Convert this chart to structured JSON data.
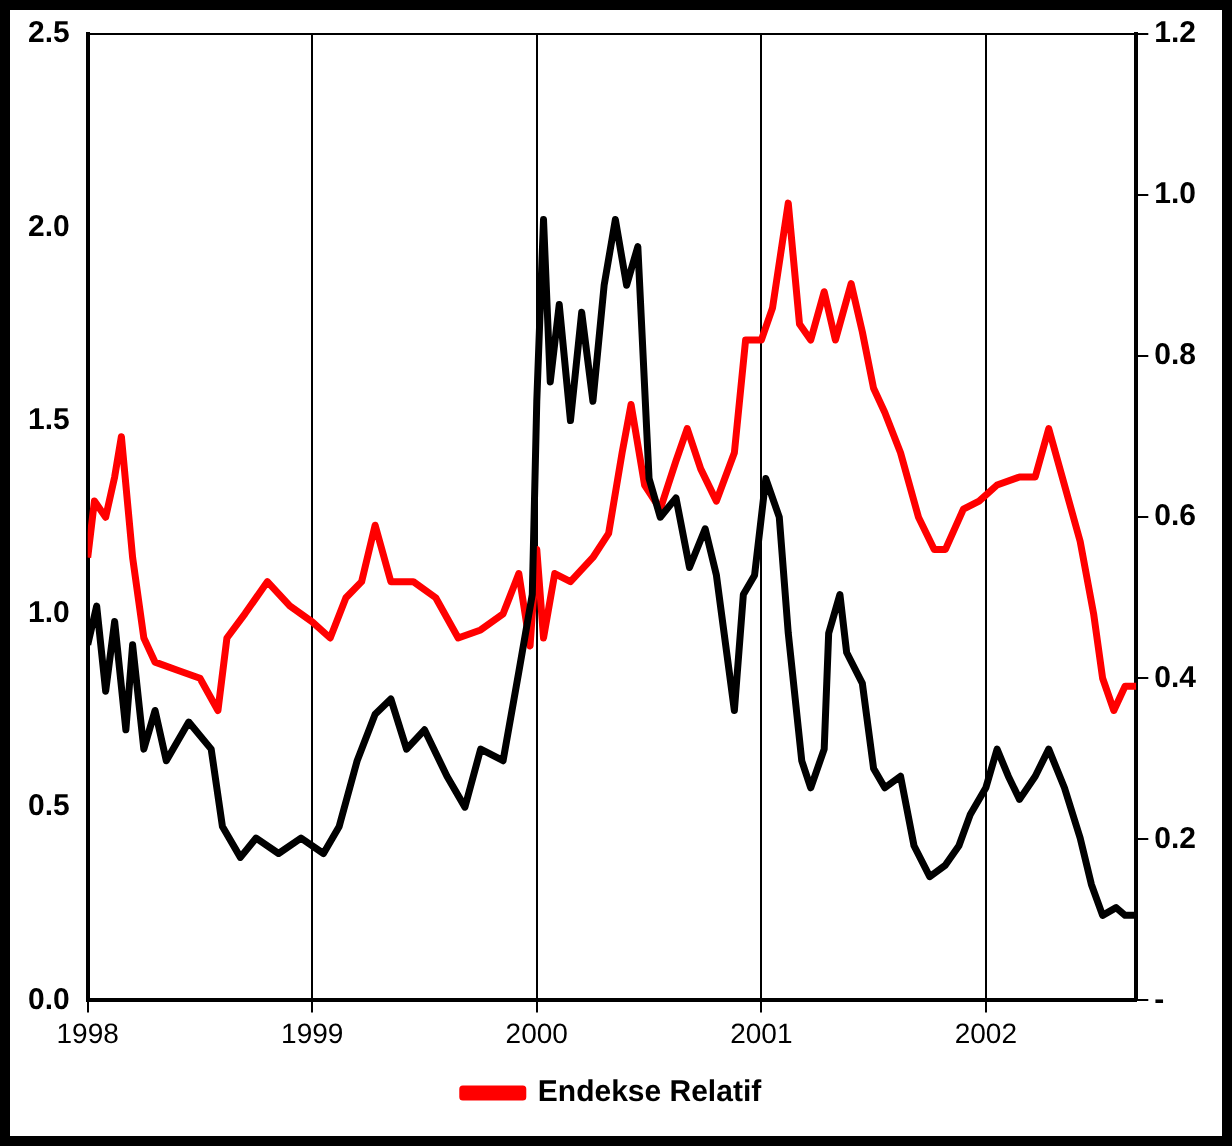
{
  "chart_data": {
    "type": "line",
    "xlim": [
      1998,
      2002.67
    ],
    "xticks": [
      1998,
      1999,
      2000,
      2001,
      2002
    ],
    "ylim": [
      0,
      2.5
    ],
    "yticks": [
      {
        "value": 0,
        "label": "0.0"
      },
      0.5,
      {
        "value": 1,
        "label": "1.0"
      },
      1.5,
      {
        "value": 2,
        "label": "2.0"
      },
      2.5
    ],
    "y2lim": [
      0,
      1.2
    ],
    "y2ticks": [
      {
        "value": 0,
        "label": "-"
      },
      0.2,
      0.4,
      0.6,
      0.8,
      {
        "value": 1,
        "label": "1.0"
      },
      1.2
    ],
    "grid": "x",
    "legend": "bottom",
    "marker": "none",
    "line_style": "solid",
    "series": [
      {
        "color": "#000000",
        "x": [
          1998.0,
          1998.04,
          1998.08,
          1998.12,
          1998.17,
          1998.2,
          1998.25,
          1998.3,
          1998.35,
          1998.45,
          1998.55,
          1998.6,
          1998.68,
          1998.75,
          1998.85,
          1998.95,
          1999.05,
          1999.12,
          1999.2,
          1999.28,
          1999.35,
          1999.42,
          1999.5,
          1999.6,
          1999.68,
          1999.75,
          1999.85,
          1999.92,
          1999.95,
          1999.98,
          2000.0,
          2000.03,
          2000.06,
          2000.1,
          2000.15,
          2000.2,
          2000.25,
          2000.3,
          2000.35,
          2000.4,
          2000.45,
          2000.5,
          2000.55,
          2000.62,
          2000.68,
          2000.75,
          2000.8,
          2000.88,
          2000.92,
          2000.97,
          2001.02,
          2001.08,
          2001.12,
          2001.18,
          2001.22,
          2001.28,
          2001.3,
          2001.35,
          2001.38,
          2001.45,
          2001.5,
          2001.55,
          2001.62,
          2001.68,
          2001.75,
          2001.82,
          2001.88,
          2001.93,
          2002.0,
          2002.05,
          2002.1,
          2002.15,
          2002.22,
          2002.28,
          2002.35,
          2002.42,
          2002.47,
          2002.52,
          2002.58,
          2002.62,
          2002.67
        ],
        "values": [
          0.92,
          1.02,
          0.8,
          0.98,
          0.7,
          0.92,
          0.65,
          0.75,
          0.62,
          0.72,
          0.65,
          0.45,
          0.37,
          0.42,
          0.38,
          0.42,
          0.38,
          0.45,
          0.62,
          0.74,
          0.78,
          0.65,
          0.7,
          0.58,
          0.5,
          0.65,
          0.62,
          0.85,
          0.95,
          1.05,
          1.55,
          2.02,
          1.6,
          1.8,
          1.5,
          1.78,
          1.55,
          1.85,
          2.02,
          1.85,
          1.95,
          1.35,
          1.25,
          1.3,
          1.12,
          1.22,
          1.1,
          0.75,
          1.05,
          1.1,
          1.35,
          1.25,
          0.95,
          0.62,
          0.55,
          0.65,
          0.95,
          1.05,
          0.9,
          0.82,
          0.6,
          0.55,
          0.58,
          0.4,
          0.32,
          0.35,
          0.4,
          0.48,
          0.55,
          0.65,
          0.58,
          0.52,
          0.58,
          0.65,
          0.55,
          0.42,
          0.3,
          0.22,
          0.24,
          0.22,
          0.22
        ]
      },
      {
        "name": "Endekse Relatif",
        "color": "#ff0000",
        "axis": "y2",
        "x": [
          1998.0,
          1998.03,
          1998.08,
          1998.12,
          1998.15,
          1998.2,
          1998.25,
          1998.3,
          1998.4,
          1998.5,
          1998.58,
          1998.62,
          1998.7,
          1998.8,
          1998.9,
          1999.0,
          1999.08,
          1999.15,
          1999.22,
          1999.28,
          1999.35,
          1999.45,
          1999.55,
          1999.65,
          1999.75,
          1999.85,
          1999.92,
          1999.97,
          2000.0,
          2000.03,
          2000.08,
          2000.15,
          2000.25,
          2000.32,
          2000.38,
          2000.42,
          2000.48,
          2000.55,
          2000.62,
          2000.67,
          2000.73,
          2000.8,
          2000.88,
          2000.93,
          2001.0,
          2001.05,
          2001.12,
          2001.17,
          2001.22,
          2001.28,
          2001.33,
          2001.4,
          2001.45,
          2001.5,
          2001.55,
          2001.62,
          2001.7,
          2001.77,
          2001.82,
          2001.9,
          2001.97,
          2002.05,
          2002.15,
          2002.22,
          2002.28,
          2002.35,
          2002.42,
          2002.48,
          2002.52,
          2002.57,
          2002.62,
          2002.67
        ],
        "values": [
          0.55,
          0.62,
          0.6,
          0.65,
          0.7,
          0.55,
          0.45,
          0.42,
          0.41,
          0.4,
          0.36,
          0.45,
          0.48,
          0.52,
          0.49,
          0.47,
          0.45,
          0.5,
          0.52,
          0.59,
          0.52,
          0.52,
          0.5,
          0.45,
          0.46,
          0.48,
          0.53,
          0.44,
          0.56,
          0.45,
          0.53,
          0.52,
          0.55,
          0.58,
          0.68,
          0.74,
          0.64,
          0.61,
          0.67,
          0.71,
          0.66,
          0.62,
          0.68,
          0.82,
          0.82,
          0.86,
          0.99,
          0.84,
          0.82,
          0.88,
          0.82,
          0.89,
          0.83,
          0.76,
          0.73,
          0.68,
          0.6,
          0.56,
          0.56,
          0.61,
          0.62,
          0.64,
          0.65,
          0.65,
          0.71,
          0.64,
          0.57,
          0.48,
          0.4,
          0.36,
          0.39,
          0.39
        ]
      }
    ]
  }
}
